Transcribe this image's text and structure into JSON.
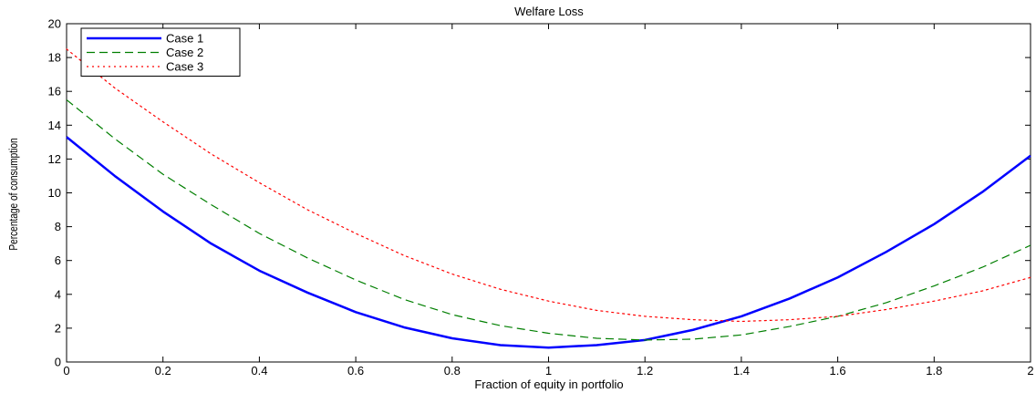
{
  "chart_data": {
    "type": "line",
    "title": "Welfare Loss",
    "xlabel": "Fraction of equity in portfolio",
    "ylabel": "Percentage of consumption",
    "xlim": [
      0,
      2
    ],
    "ylim": [
      0,
      20
    ],
    "x_ticks": [
      "0",
      "0.2",
      "0.4",
      "0.6",
      "0.8",
      "1",
      "1.2",
      "1.4",
      "1.6",
      "1.8",
      "2"
    ],
    "y_ticks": [
      "0",
      "2",
      "4",
      "6",
      "8",
      "10",
      "12",
      "14",
      "16",
      "18",
      "20"
    ],
    "grid": false,
    "legend_position": "top-left",
    "x": [
      0,
      0.1,
      0.2,
      0.3,
      0.4,
      0.5,
      0.6,
      0.7,
      0.8,
      0.9,
      1.0,
      1.1,
      1.2,
      1.3,
      1.4,
      1.5,
      1.6,
      1.7,
      1.8,
      1.9,
      2.0
    ],
    "series": [
      {
        "name": "Case 1",
        "color": "#0000ff",
        "style": "solid",
        "values": [
          13.3,
          11.0,
          8.9,
          7.0,
          5.4,
          4.1,
          2.95,
          2.05,
          1.4,
          1.0,
          0.85,
          1.0,
          1.3,
          1.9,
          2.7,
          3.75,
          5.0,
          6.5,
          8.15,
          10.05,
          12.2
        ]
      },
      {
        "name": "Case 2",
        "color": "#007f00",
        "style": "dashed",
        "values": [
          15.5,
          13.2,
          11.1,
          9.3,
          7.6,
          6.15,
          4.85,
          3.7,
          2.8,
          2.15,
          1.7,
          1.4,
          1.3,
          1.35,
          1.6,
          2.1,
          2.7,
          3.5,
          4.5,
          5.6,
          6.9
        ]
      },
      {
        "name": "Case 3",
        "color": "#ff0000",
        "style": "dotted",
        "values": [
          18.5,
          16.2,
          14.2,
          12.3,
          10.6,
          9.0,
          7.6,
          6.3,
          5.2,
          4.3,
          3.6,
          3.05,
          2.7,
          2.5,
          2.4,
          2.5,
          2.7,
          3.1,
          3.6,
          4.2,
          5.0
        ]
      }
    ]
  }
}
